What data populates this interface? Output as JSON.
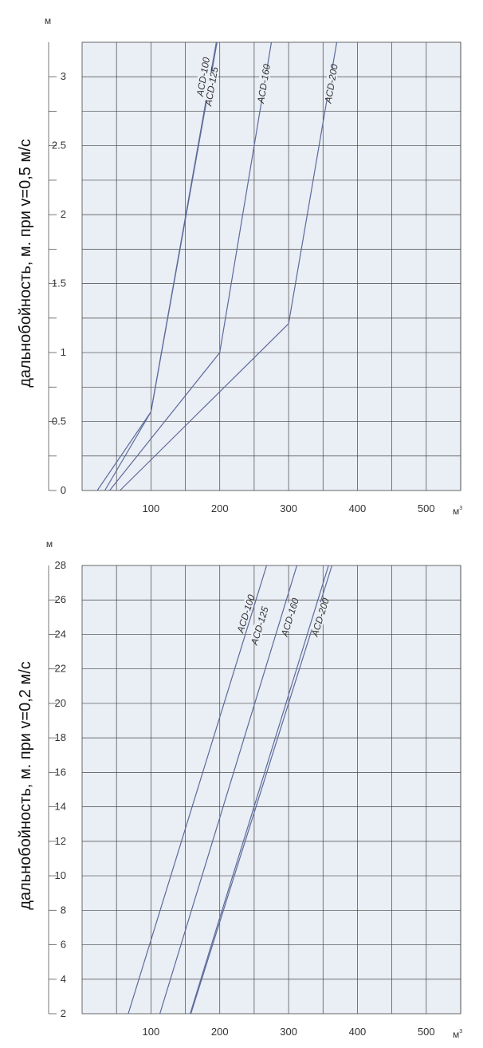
{
  "colors": {
    "plot_bg": "#eaeef5",
    "grid": "#444444",
    "line": "#5b6b9a",
    "axis": "#555555"
  },
  "chart_data": [
    {
      "type": "line",
      "ylabel": "дальнобойность, м. при v=0,5 м/с",
      "y_unit": "м",
      "x_unit": "м",
      "x_unit_sup": "3",
      "xlim": [
        0,
        550
      ],
      "ylim": [
        0,
        3.25
      ],
      "grid": true,
      "x_ticks": [
        100,
        200,
        300,
        400,
        500
      ],
      "x_tick_labels": [
        "100",
        "200",
        "300",
        "400",
        "500"
      ],
      "x_grid": [
        50,
        100,
        150,
        200,
        250,
        300,
        350,
        400,
        450,
        500,
        550
      ],
      "y_ticks": [
        0,
        0.5,
        1,
        1.5,
        2,
        2.5,
        3
      ],
      "y_tick_labels": [
        "0",
        "0.5",
        "1",
        "1.5",
        "2",
        "2.5",
        "3"
      ],
      "y_grid": [
        0.25,
        0.5,
        0.75,
        1,
        1.25,
        1.5,
        1.75,
        2,
        2.25,
        2.5,
        2.75,
        3
      ],
      "series": [
        {
          "name": "ACD-100",
          "points": [
            [
              22,
              0
            ],
            [
              100,
              0.57
            ],
            [
              195,
              3.25
            ]
          ],
          "label_at": [
            176,
            3.0
          ]
        },
        {
          "name": "ACD-125",
          "points": [
            [
              33,
              0
            ],
            [
              100,
              0.57
            ],
            [
              196,
              3.25
            ]
          ],
          "label_at": [
            188,
            2.93
          ]
        },
        {
          "name": "ACD-160",
          "points": [
            [
              40,
              0
            ],
            [
              200,
              1.0
            ],
            [
              275,
              3.25
            ]
          ],
          "label_at": [
            264,
            2.95
          ]
        },
        {
          "name": "ACD-200",
          "points": [
            [
              55,
              0
            ],
            [
              300,
              1.21
            ],
            [
              370,
              3.25
            ]
          ],
          "label_at": [
            362,
            2.95
          ]
        }
      ]
    },
    {
      "type": "line",
      "ylabel": "дальнобойность, м. при v=0,2 м/с",
      "y_unit": "м",
      "x_unit": "м",
      "x_unit_sup": "3",
      "xlim": [
        0,
        550
      ],
      "ylim": [
        2,
        28
      ],
      "grid": true,
      "x_ticks": [
        100,
        200,
        300,
        400,
        500
      ],
      "x_tick_labels": [
        "100",
        "200",
        "300",
        "400",
        "500"
      ],
      "x_grid": [
        50,
        100,
        150,
        200,
        250,
        300,
        350,
        400,
        450,
        500,
        550
      ],
      "y_ticks": [
        2,
        4,
        6,
        8,
        10,
        12,
        14,
        16,
        18,
        20,
        22,
        24,
        26,
        28
      ],
      "y_tick_labels": [
        "2",
        "4",
        "6",
        "8",
        "10",
        "12",
        "14",
        "16",
        "18",
        "20",
        "22",
        "24",
        "26",
        "28"
      ],
      "y_grid": [
        4,
        6,
        8,
        10,
        12,
        14,
        16,
        18,
        20,
        22,
        24,
        26
      ],
      "series": [
        {
          "name": "ACD-100",
          "points": [
            [
              67,
              2
            ],
            [
              268,
              28
            ]
          ],
          "label_at": [
            238,
            25.2
          ]
        },
        {
          "name": "ACD-125",
          "points": [
            [
              113,
              2
            ],
            [
              312,
              28
            ]
          ],
          "label_at": [
            258,
            24.5
          ]
        },
        {
          "name": "ACD-160",
          "points": [
            [
              157,
              2
            ],
            [
              358,
              28
            ]
          ],
          "label_at": [
            302,
            25.0
          ]
        },
        {
          "name": "ACD-200",
          "points": [
            [
              158,
              2
            ],
            [
              363,
              28
            ]
          ],
          "label_at": [
            346,
            25.0
          ]
        }
      ]
    }
  ]
}
